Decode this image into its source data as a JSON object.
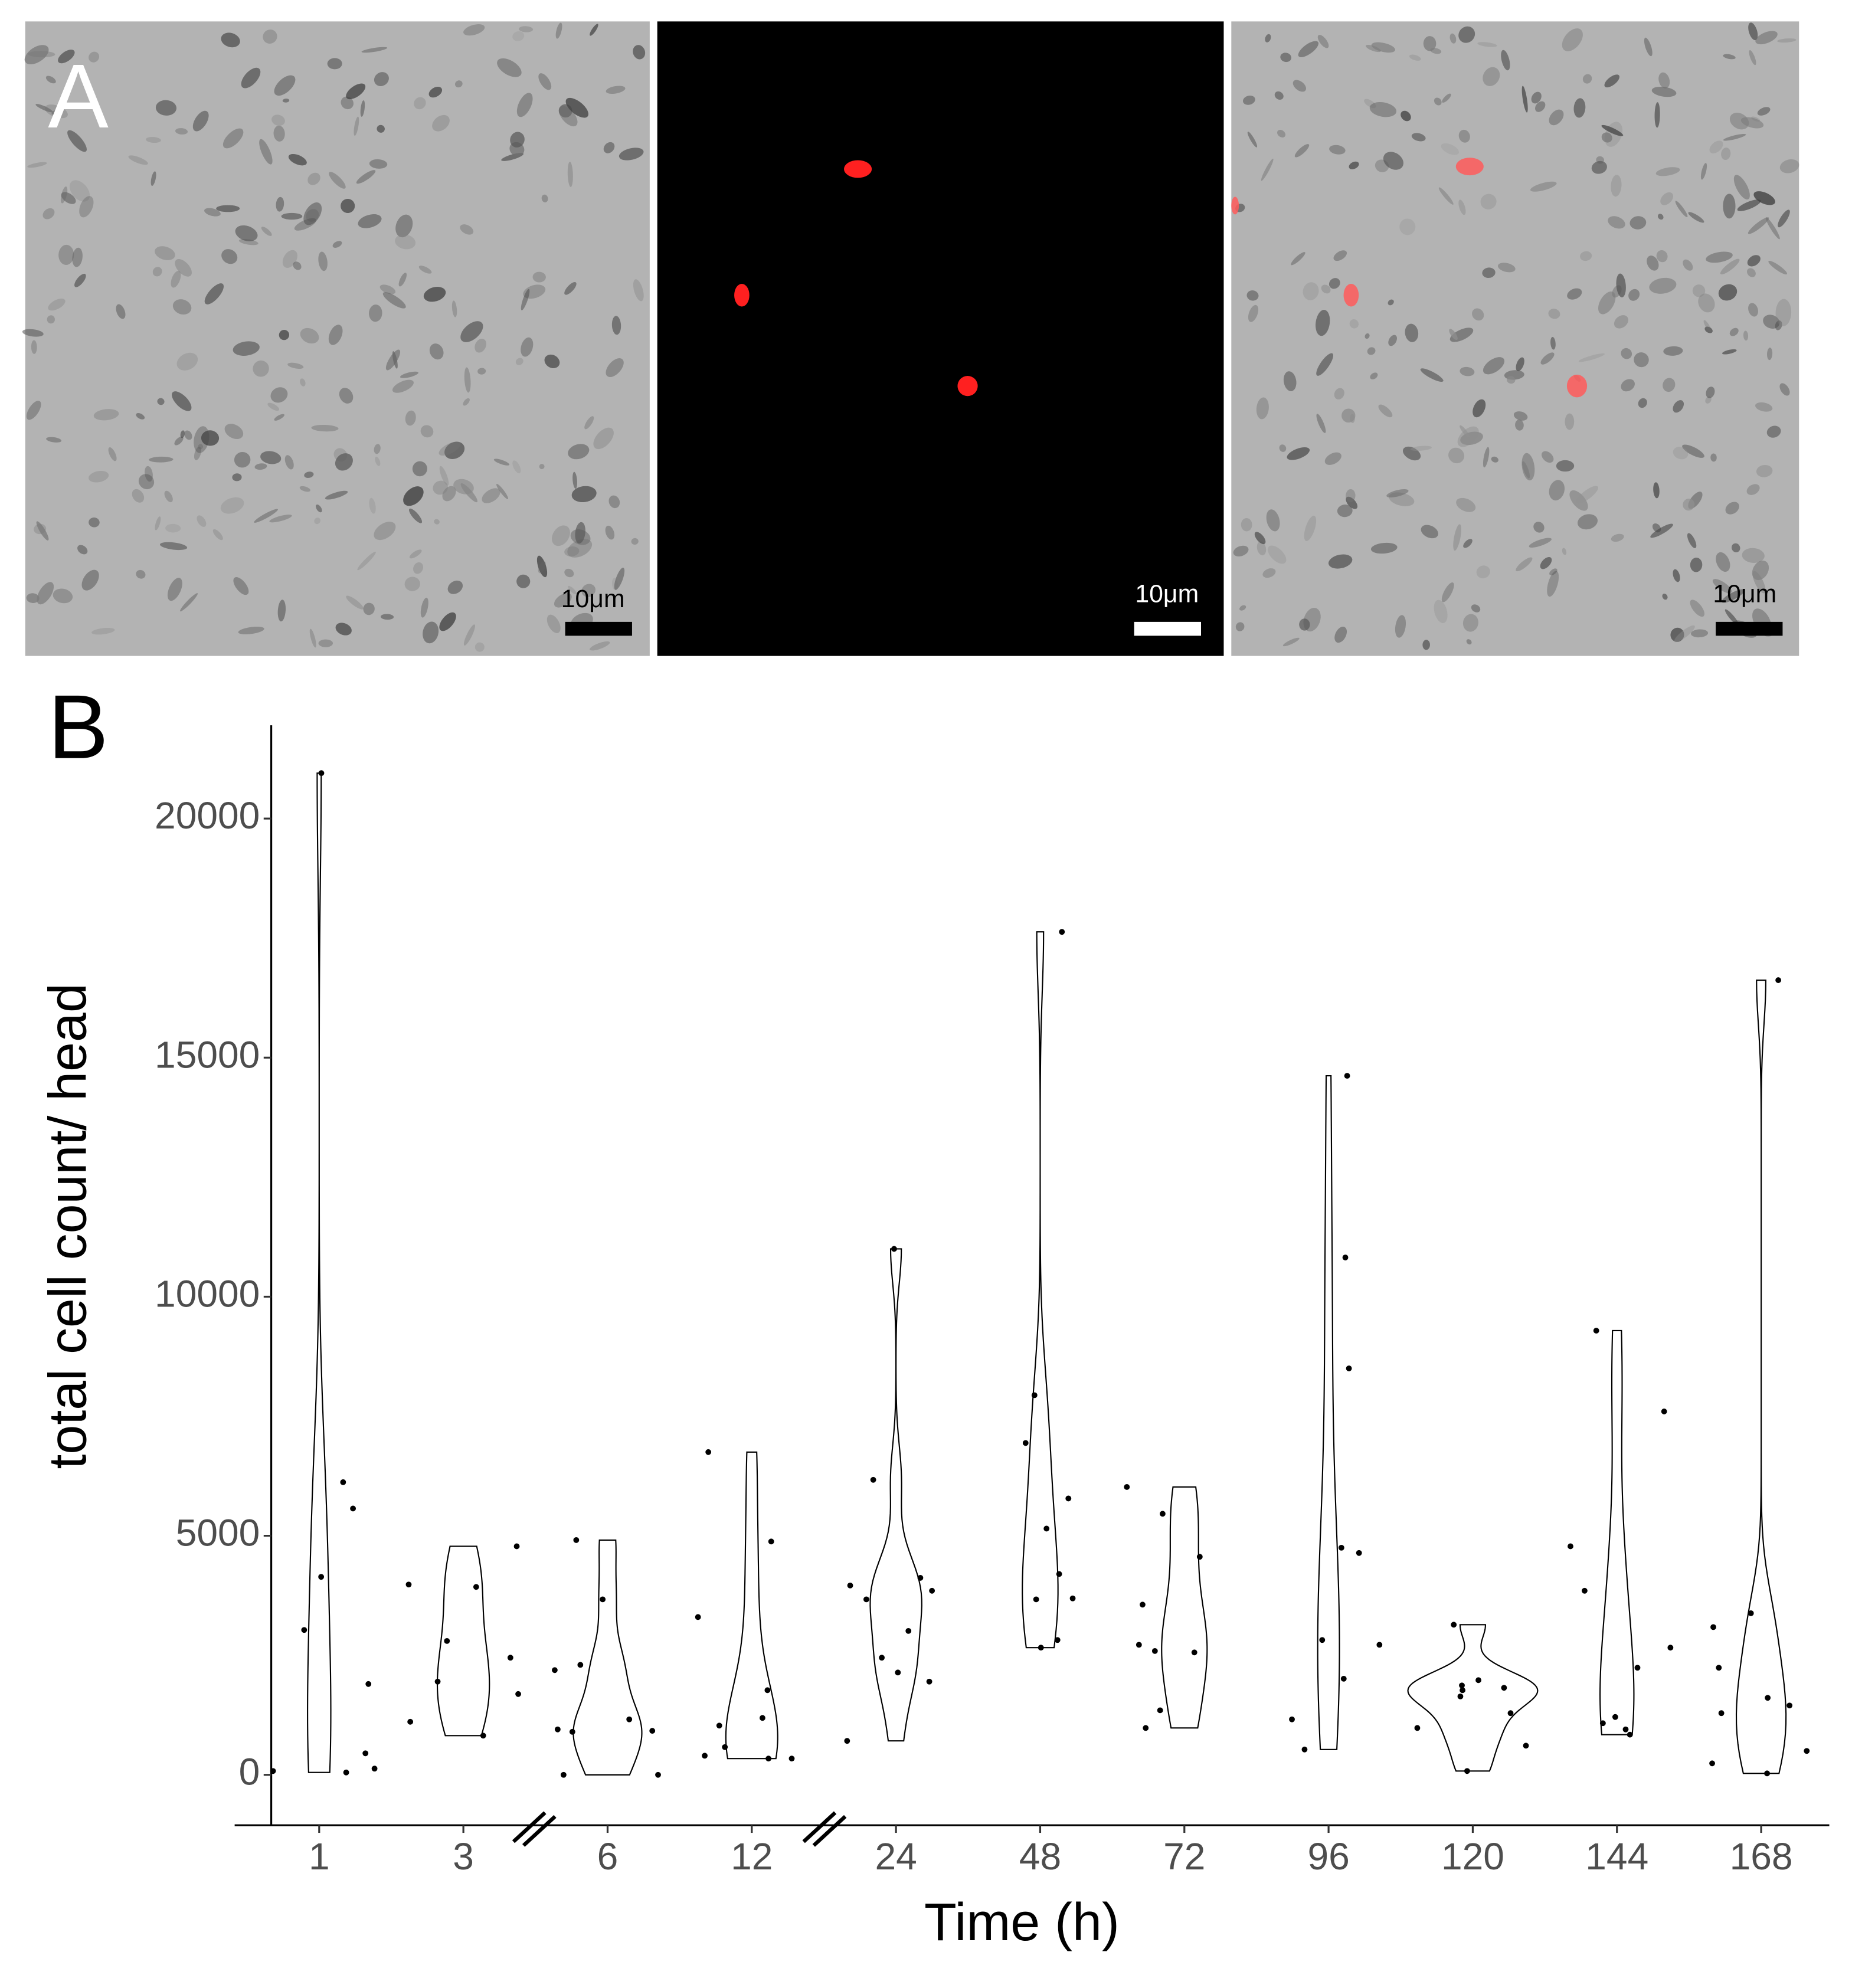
{
  "panel_a": {
    "label": "A",
    "images": [
      {
        "scale_bar": "10μm"
      },
      {
        "scale_bar": "10μm"
      },
      {
        "scale_bar": "10μm"
      }
    ]
  },
  "chart_data": {
    "type": "violin",
    "label": "B",
    "x_label": "Time (h)",
    "y_label": "total cell count/ head",
    "categories": [
      "1",
      "3",
      "6",
      "12",
      "24",
      "48",
      "72",
      "96",
      "120",
      "144",
      "168"
    ],
    "values": [
      [
        20950,
        6120,
        5570,
        4140,
        3030,
        1900,
        450,
        130,
        80,
        50
      ],
      [
        4780,
        3980,
        3930,
        2800,
        2450,
        1950,
        1690,
        1110,
        820
      ],
      [
        4910,
        3670,
        2300,
        2190,
        1160,
        950,
        920,
        900,
        0,
        0
      ],
      [
        6750,
        4880,
        3300,
        1770,
        1190,
        1030,
        580,
        400,
        340,
        340
      ],
      [
        11000,
        6170,
        4120,
        3960,
        3850,
        3670,
        3010,
        2450,
        2140,
        1950,
        710
      ],
      [
        17630,
        7940,
        6940,
        5780,
        5150,
        4200,
        3690,
        3670,
        2820,
        2660
      ],
      [
        6020,
        5460,
        4560,
        3560,
        2720,
        2590,
        2560,
        1350,
        980
      ],
      [
        14620,
        10820,
        8500,
        4750,
        4640,
        2820,
        2720,
        2010,
        1160,
        530
      ],
      [
        3140,
        1980,
        1870,
        1820,
        1770,
        1640,
        1290,
        980,
        610,
        80
      ],
      [
        9290,
        7600,
        4780,
        3850,
        2660,
        2240,
        1210,
        1080,
        950,
        840
      ],
      [
        16620,
        3380,
        3090,
        2240,
        1610,
        1450,
        1290,
        500,
        240,
        30
      ]
    ],
    "ylim": [
      -1055,
      21950
    ],
    "yticks": [
      0,
      5000,
      10000,
      15000,
      20000
    ]
  }
}
